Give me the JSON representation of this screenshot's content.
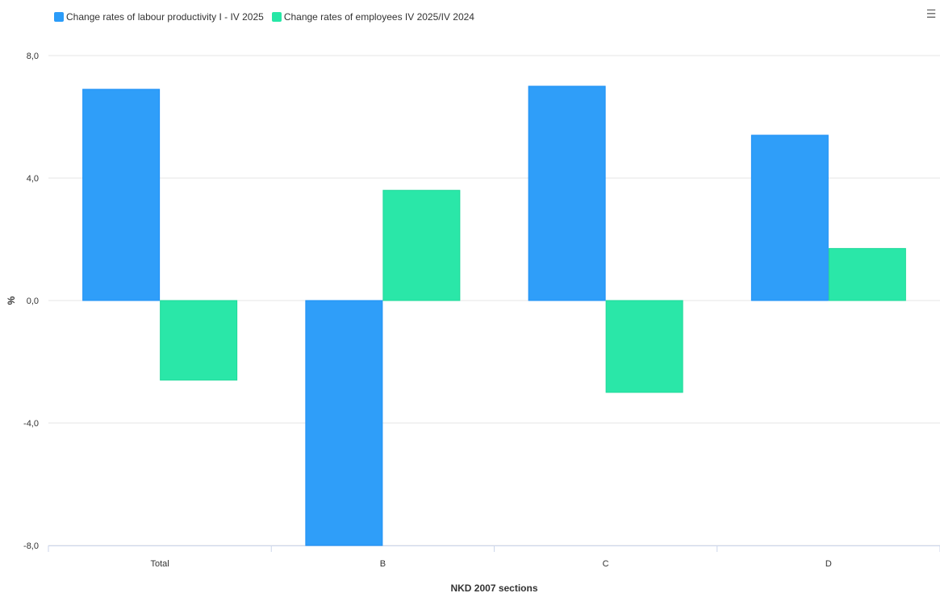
{
  "menu_icon": "hamburger-menu-icon",
  "chart_data": {
    "type": "bar",
    "categories": [
      "Total",
      "B",
      "C",
      "D"
    ],
    "series": [
      {
        "name": "Change rates of labour productivity I - IV 2025",
        "color": "#2b9cf9",
        "values": [
          6.9,
          -8.0,
          7.0,
          5.4
        ]
      },
      {
        "name": "Change rates of employees IV 2025/IV 2024",
        "color": "#26e7a6",
        "values": [
          -2.6,
          3.6,
          -3.0,
          1.7
        ]
      }
    ],
    "yticks": [
      "8,0",
      "4,0",
      "0,0",
      "-4,0",
      "-8,0"
    ],
    "ytick_values": [
      8,
      4,
      0,
      -4,
      -8
    ],
    "xlabel": "NKD 2007 sections",
    "ylabel": "%",
    "ylim": [
      -8,
      8
    ],
    "grid": true,
    "legend_position": "top-left"
  }
}
